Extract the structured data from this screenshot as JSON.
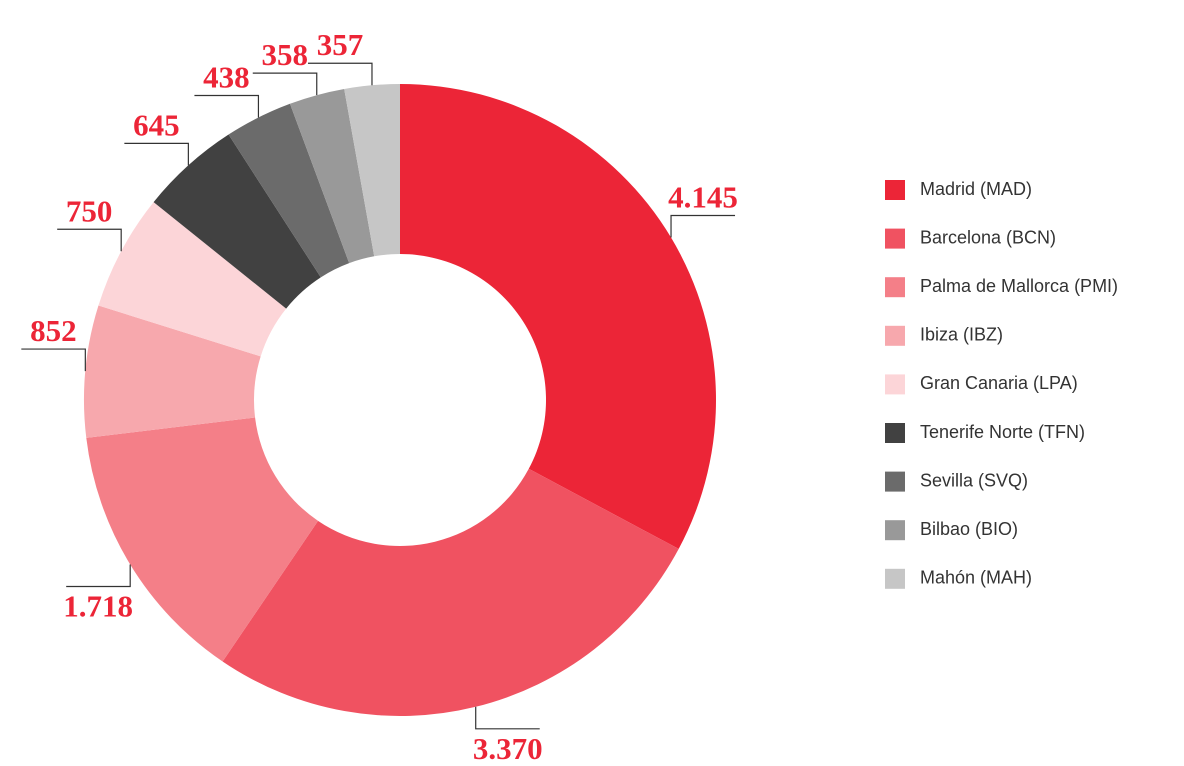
{
  "chart_data": {
    "type": "donut",
    "categories": [
      "Madrid (MAD)",
      "Barcelona (BCN)",
      "Palma de Mallorca (PMI)",
      "Ibiza (IBZ)",
      "Gran Canaria (LPA)",
      "Tenerife Norte (TFN)",
      "Sevilla (SVQ)",
      "Bilbao (BIO)",
      "Mahón (MAH)"
    ],
    "values": [
      4145,
      3370,
      1718,
      852,
      750,
      645,
      438,
      358,
      357
    ],
    "value_labels": [
      "4.145",
      "3.370",
      "1.718",
      "852",
      "750",
      "645",
      "438",
      "358",
      "357"
    ],
    "colors": [
      "#ec2537",
      "#f05261",
      "#f47f88",
      "#f7a8ad",
      "#fcd5d8",
      "#414141",
      "#6b6b6b",
      "#999999",
      "#c6c6c6"
    ],
    "legend": "right"
  }
}
